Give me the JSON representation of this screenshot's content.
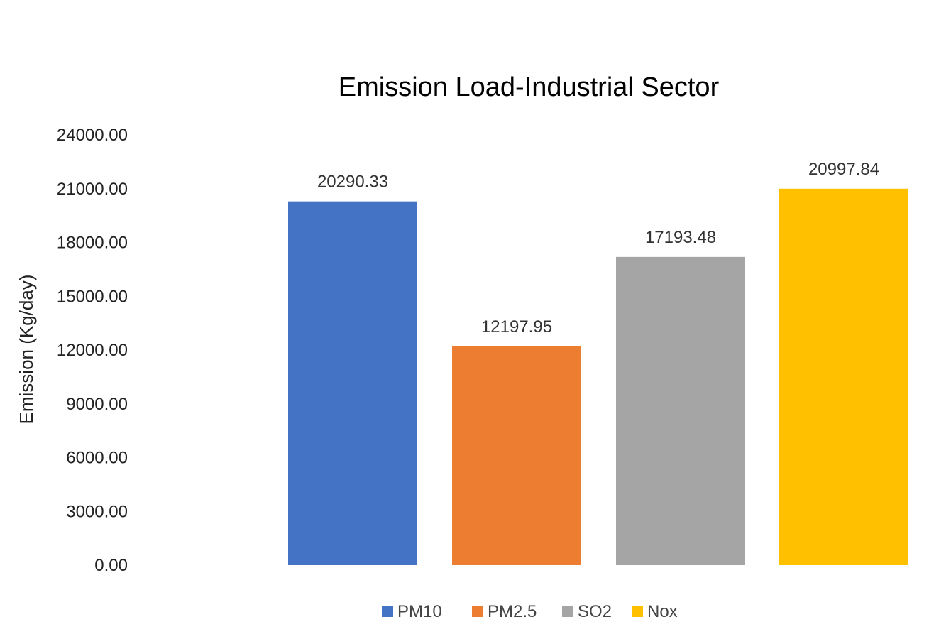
{
  "chart_data": {
    "type": "bar",
    "title": "Emission Load-Industrial Sector",
    "xlabel": "",
    "ylabel": "Emission (Kg/day)",
    "ylim": [
      0,
      24000
    ],
    "yticks": [
      "0.00",
      "3000.00",
      "6000.00",
      "9000.00",
      "12000.00",
      "15000.00",
      "18000.00",
      "21000.00",
      "24000.00"
    ],
    "ytick_values": [
      0,
      3000,
      6000,
      9000,
      12000,
      15000,
      18000,
      21000,
      24000
    ],
    "grid": false,
    "legend_position": "bottom",
    "series": [
      {
        "name": "PM10",
        "value": 20290.33,
        "label": "20290.33",
        "color": "#4472C4"
      },
      {
        "name": "PM2.5",
        "value": 12197.95,
        "label": "12197.95",
        "color": "#ED7D31"
      },
      {
        "name": "SO2",
        "value": 17193.48,
        "label": "17193.48",
        "color": "#A5A5A5"
      },
      {
        "name": "Nox",
        "value": 20997.84,
        "label": "20997.84",
        "color": "#FFC000"
      }
    ]
  }
}
